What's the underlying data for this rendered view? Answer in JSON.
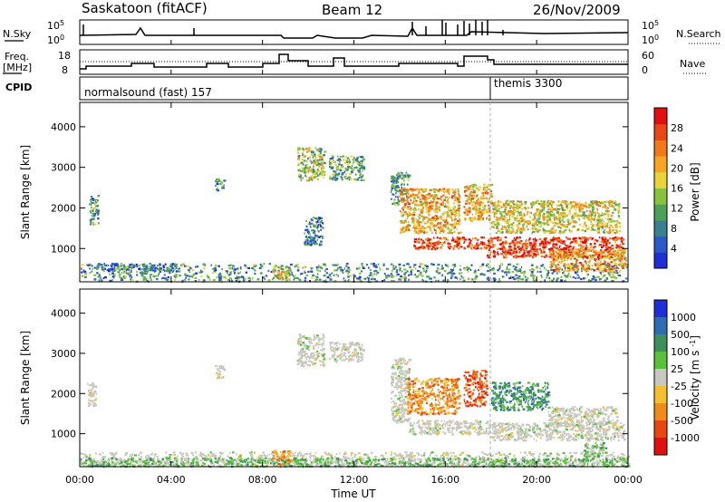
{
  "header": {
    "station": "Saskatoon (fitACF)",
    "beam": "Beam 12",
    "date": "26/Nov/2009"
  },
  "noise_panel": {
    "left_label": "N.Sky",
    "right_label": "N.Search",
    "tick_top": "10^5",
    "tick_bottom": "10^0"
  },
  "freq_panel": {
    "left_label_1": "Freq.",
    "left_label_2": "[MHz]",
    "left_tick_top": "18",
    "left_tick_bottom": "8",
    "right_label": "Nave",
    "right_tick_top": "60",
    "right_tick_bottom": "0"
  },
  "cpid_panel": {
    "label": "CPID",
    "mode_1": "normalsound (fast) 157",
    "mode_2": "themis 3300"
  },
  "chart_data": [
    {
      "type": "heatmap",
      "name": "power-panel",
      "ylabel": "Slant Range [km]",
      "ylim": [
        180,
        4600
      ],
      "yticks": [
        "1000",
        "2000",
        "3000",
        "4000"
      ],
      "xlim": [
        0,
        24
      ],
      "colorbar": {
        "label": "Power [dB]",
        "ticks": [
          "4",
          "8",
          "12",
          "16",
          "20",
          "24",
          "28"
        ],
        "range": [
          0,
          32
        ],
        "colors": [
          "#1f2fd8",
          "#2c59c8",
          "#3a7f8f",
          "#4e9f5a",
          "#86c43f",
          "#e8d43a",
          "#f5a623",
          "#f07a1a",
          "#e84816",
          "#e01010"
        ]
      },
      "regions": [
        {
          "t0": 0.0,
          "t1": 24.0,
          "r0": 200,
          "r1": 650,
          "level": 0.3
        },
        {
          "t0": 0.4,
          "t1": 0.8,
          "r0": 1600,
          "r1": 2350,
          "level": 0.3
        },
        {
          "t0": 0.7,
          "t1": 4.2,
          "r0": 450,
          "r1": 650,
          "level": 0.25
        },
        {
          "t0": 5.9,
          "t1": 6.3,
          "r0": 2450,
          "r1": 2750,
          "level": 0.3
        },
        {
          "t0": 8.4,
          "t1": 9.2,
          "r0": 250,
          "r1": 600,
          "level": 0.55
        },
        {
          "t0": 9.5,
          "t1": 10.7,
          "r0": 2700,
          "r1": 3500,
          "level": 0.45
        },
        {
          "t0": 10.9,
          "t1": 12.4,
          "r0": 2700,
          "r1": 3300,
          "level": 0.35
        },
        {
          "t0": 9.8,
          "t1": 10.6,
          "r0": 1100,
          "r1": 1800,
          "level": 0.25
        },
        {
          "t0": 13.6,
          "t1": 14.4,
          "r0": 2100,
          "r1": 2900,
          "level": 0.35
        },
        {
          "t0": 14.0,
          "t1": 16.6,
          "r0": 1400,
          "r1": 2500,
          "level": 0.65
        },
        {
          "t0": 14.6,
          "t1": 17.8,
          "r0": 1000,
          "r1": 1300,
          "level": 0.85
        },
        {
          "t0": 16.8,
          "t1": 18.0,
          "r0": 1700,
          "r1": 2600,
          "level": 0.65
        },
        {
          "t0": 17.8,
          "t1": 23.8,
          "r0": 800,
          "r1": 1300,
          "level": 0.9
        },
        {
          "t0": 18.0,
          "t1": 23.6,
          "r0": 1400,
          "r1": 2200,
          "level": 0.55
        },
        {
          "t0": 20.5,
          "t1": 23.9,
          "r0": 450,
          "r1": 1000,
          "level": 0.7
        }
      ]
    },
    {
      "type": "heatmap",
      "name": "velocity-panel",
      "xlabel": "Time UT",
      "ylabel": "Slant Range [km]",
      "ylim": [
        180,
        4600
      ],
      "yticks": [
        "1000",
        "2000",
        "3000",
        "4000"
      ],
      "xlim": [
        0,
        24
      ],
      "xticks": [
        "00:00",
        "04:00",
        "08:00",
        "12:00",
        "16:00",
        "20:00",
        "00:00"
      ],
      "colorbar": {
        "label": "Velocity [m s^-1]",
        "ticks": [
          "1000",
          "500",
          "100",
          "25",
          "-25",
          "-100",
          "-500",
          "-1000"
        ],
        "colors": [
          "#1f2fd8",
          "#2f6bb0",
          "#3f8f5a",
          "#58c03a",
          "#c8c8c0",
          "#f5c030",
          "#f08a18",
          "#e84810",
          "#e01010"
        ]
      },
      "regions": [
        {
          "t0": 0.0,
          "t1": 24.0,
          "r0": 200,
          "r1": 560,
          "class": 4
        },
        {
          "t0": 0.0,
          "t1": 24.0,
          "r0": 200,
          "r1": 420,
          "class": 3
        },
        {
          "t0": 0.3,
          "t1": 0.7,
          "r0": 1700,
          "r1": 2300,
          "class": 4
        },
        {
          "t0": 5.9,
          "t1": 6.3,
          "r0": 2400,
          "r1": 2750,
          "class": 4
        },
        {
          "t0": 8.4,
          "t1": 9.2,
          "r0": 250,
          "r1": 600,
          "class": 6
        },
        {
          "t0": 9.5,
          "t1": 10.7,
          "r0": 2700,
          "r1": 3500,
          "class": 4
        },
        {
          "t0": 10.9,
          "t1": 12.4,
          "r0": 2800,
          "r1": 3300,
          "class": 4
        },
        {
          "t0": 13.6,
          "t1": 14.4,
          "r0": 1300,
          "r1": 2900,
          "class": 4
        },
        {
          "t0": 14.3,
          "t1": 16.6,
          "r0": 1500,
          "r1": 2400,
          "class": 6
        },
        {
          "t0": 16.8,
          "t1": 17.8,
          "r0": 1700,
          "r1": 2600,
          "class": 7
        },
        {
          "t0": 14.4,
          "t1": 18.0,
          "r0": 1000,
          "r1": 1350,
          "class": 4
        },
        {
          "t0": 18.0,
          "t1": 20.5,
          "r0": 1600,
          "r1": 2300,
          "class": 2
        },
        {
          "t0": 18.0,
          "t1": 23.8,
          "r0": 850,
          "r1": 1300,
          "class": 4
        },
        {
          "t0": 20.5,
          "t1": 23.5,
          "r0": 1200,
          "r1": 1700,
          "class": 4
        },
        {
          "t0": 22.0,
          "t1": 23.0,
          "r0": 450,
          "r1": 800,
          "class": 3
        }
      ]
    }
  ]
}
